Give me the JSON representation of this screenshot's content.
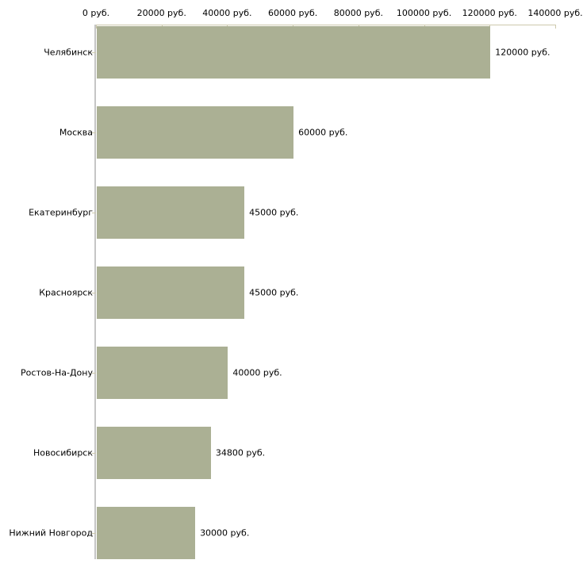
{
  "chart_data": {
    "type": "bar",
    "orientation": "horizontal",
    "title": "",
    "categories": [
      "Челябинск",
      "Москва",
      "Екатеринбург",
      "Красноярск",
      "Ростов-На-Дону",
      "Новосибирск",
      "Нижний Новгород"
    ],
    "values": [
      120000,
      60000,
      45000,
      45000,
      40000,
      34800,
      30000
    ],
    "value_labels": [
      "120000 руб.",
      "60000 руб.",
      "45000 руб.",
      "45000 руб.",
      "40000 руб.",
      "34800 руб.",
      "30000 руб."
    ],
    "xlabel": "",
    "ylabel": "",
    "x_axis": {
      "position": "top",
      "min": 0,
      "max": 140000,
      "ticks": [
        0,
        20000,
        40000,
        60000,
        80000,
        100000,
        120000,
        140000
      ],
      "tick_labels": [
        "0 руб.",
        "20000 руб.",
        "40000 руб.",
        "60000 руб.",
        "80000 руб.",
        "100000 руб.",
        "120000 руб.",
        "140000 руб."
      ]
    },
    "grid": false,
    "legend": false,
    "colors": {
      "bar_fill": "#abb094",
      "x_axis_line": "#cdc9ad",
      "y_axis_line": "#c5c5c5",
      "text": "#000000",
      "background": "#ffffff"
    }
  }
}
